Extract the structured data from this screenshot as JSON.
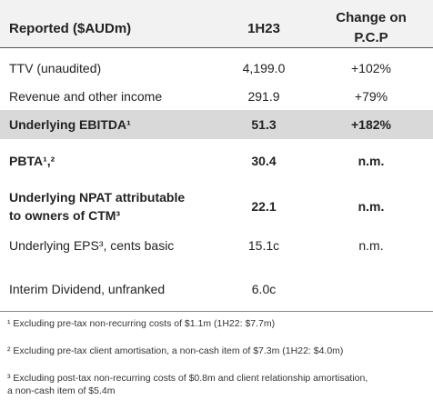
{
  "table": {
    "header": {
      "label": "Reported ($AUDm)",
      "value": "1H23",
      "change": [
        "Change on",
        "P.C.P"
      ]
    },
    "rows": [
      {
        "label": [
          "TTV (unaudited)"
        ],
        "value": "4,199.0",
        "change": "+102%"
      },
      {
        "label": [
          "Revenue and other income"
        ],
        "value": "291.9",
        "change": "+79%"
      },
      {
        "label": [
          "Underlying EBITDA¹"
        ],
        "value": "51.3",
        "change": "+182%",
        "bold": true,
        "highlight": true
      },
      {
        "label": [
          "PBTA¹,²"
        ],
        "value": "30.4",
        "change": "n.m.",
        "bold": true
      },
      {
        "label": [
          "Underlying NPAT attributable",
          "to owners of CTM³"
        ],
        "value": "22.1",
        "change": "n.m.",
        "bold": true
      },
      {
        "label": [
          "Underlying EPS³, cents basic"
        ],
        "value": "15.1c",
        "change": "n.m."
      },
      {
        "label": [
          "Interim Dividend, unfranked"
        ],
        "value": "6.0c"
      }
    ],
    "footnotes": [
      {
        "lines": [
          "¹ Excluding pre-tax non-recurring costs of $1.1m (1H22: $7.7m)"
        ]
      },
      {
        "lines": [
          "² Excluding pre-tax client amortisation, a non-cash item of $7.3m (1H22: $4.0m)"
        ]
      },
      {
        "lines": [
          "³ Excluding post-tax non-recurring costs of $0.8m and client relationship amortisation,",
          "a non-cash item of $5.4m"
        ]
      }
    ]
  }
}
